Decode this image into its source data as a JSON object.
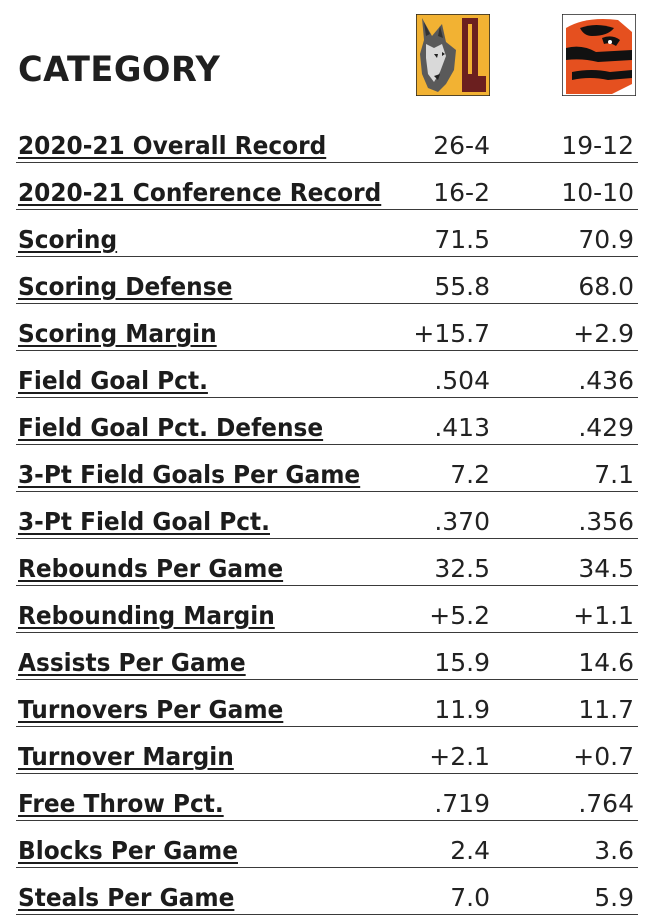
{
  "header": {
    "title": "CATEGORY",
    "team_a_logo": "wolf-mascot-logo",
    "team_b_logo": "beaver-mascot-logo",
    "team_a_colors": {
      "primary": "#f2b233",
      "secondary": "#6b1f1f"
    },
    "team_b_colors": {
      "primary": "#e5501f",
      "secondary": "#111111"
    }
  },
  "rows": [
    {
      "label": "2020-21 Overall Record",
      "a": "26-4",
      "b": "19-12"
    },
    {
      "label": "2020-21 Conference Record",
      "a": "16-2",
      "b": "10-10"
    },
    {
      "label": "Scoring",
      "a": "71.5",
      "b": "70.9"
    },
    {
      "label": "Scoring Defense",
      "a": "55.8",
      "b": "68.0"
    },
    {
      "label": "Scoring Margin",
      "a": "+15.7",
      "b": "+2.9"
    },
    {
      "label": "Field Goal Pct.",
      "a": ".504",
      "b": ".436"
    },
    {
      "label": "Field Goal Pct. Defense",
      "a": ".413",
      "b": ".429"
    },
    {
      "label": "3-Pt Field Goals Per Game",
      "a": "7.2",
      "b": "7.1"
    },
    {
      "label": "3-Pt Field Goal Pct.",
      "a": ".370",
      "b": ".356"
    },
    {
      "label": "Rebounds Per Game",
      "a": "32.5",
      "b": "34.5"
    },
    {
      "label": "Rebounding Margin",
      "a": "+5.2",
      "b": "+1.1"
    },
    {
      "label": "Assists Per Game",
      "a": "15.9",
      "b": "14.6"
    },
    {
      "label": "Turnovers Per Game",
      "a": "11.9",
      "b": "11.7"
    },
    {
      "label": "Turnover Margin",
      "a": "+2.1",
      "b": "+0.7"
    },
    {
      "label": "Free Throw Pct.",
      "a": ".719",
      "b": ".764"
    },
    {
      "label": "Blocks Per Game",
      "a": "2.4",
      "b": "3.6"
    },
    {
      "label": "Steals Per Game",
      "a": "7.0",
      "b": "5.9"
    }
  ]
}
